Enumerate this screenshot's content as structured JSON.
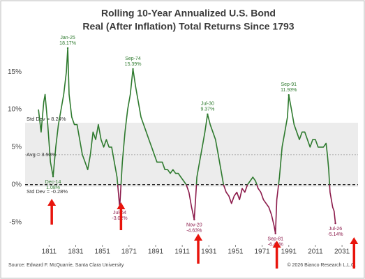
{
  "chart_data": {
    "type": "line",
    "title": "Rolling 10-Year Annualized U.S. Bond",
    "subtitle": "Real (After Inflation) Total Returns Since 1793",
    "x": [
      1803,
      1805,
      1807,
      1808,
      1810,
      1812,
      1814,
      1816,
      1818,
      1820,
      1822,
      1824,
      1825,
      1826,
      1828,
      1830,
      1832,
      1834,
      1836,
      1838,
      1840,
      1842,
      1844,
      1846,
      1848,
      1850,
      1852,
      1854,
      1856,
      1858,
      1860,
      1862,
      1864,
      1865,
      1866,
      1868,
      1870,
      1872,
      1874,
      1876,
      1878,
      1880,
      1882,
      1884,
      1886,
      1888,
      1890,
      1892,
      1894,
      1896,
      1898,
      1900,
      1902,
      1904,
      1906,
      1908,
      1910,
      1912,
      1914,
      1916,
      1918,
      1920,
      1921,
      1922,
      1924,
      1926,
      1928,
      1930,
      1932,
      1934,
      1936,
      1938,
      1940,
      1942,
      1944,
      1946,
      1948,
      1950,
      1952,
      1954,
      1956,
      1958,
      1960,
      1962,
      1964,
      1966,
      1968,
      1970,
      1972,
      1974,
      1976,
      1978,
      1980,
      1981,
      1982,
      1984,
      1986,
      1988,
      1990,
      1991,
      1993,
      1995,
      1997,
      1999,
      2001,
      2003,
      2005,
      2007,
      2009,
      2011,
      2013,
      2015,
      2017,
      2019,
      2020,
      2021,
      2022,
      2023,
      2024,
      2025,
      2026
    ],
    "values": [
      10,
      7,
      11,
      12,
      8,
      3,
      1.08,
      5,
      8,
      10,
      12,
      15,
      18.17,
      12,
      9,
      8,
      8,
      6,
      4,
      3,
      2,
      4,
      7,
      6,
      8,
      6,
      5,
      6,
      5,
      5,
      3,
      1,
      -3.02,
      0,
      3,
      7,
      10,
      12,
      15.39,
      13,
      11,
      9,
      8,
      7,
      6,
      5,
      4,
      3,
      3,
      3,
      2,
      2,
      1.5,
      2,
      1.5,
      1.5,
      1,
      0.5,
      0,
      -1,
      -3,
      -4.63,
      -2,
      1,
      3,
      5,
      7,
      9.37,
      8,
      7,
      6,
      4,
      2,
      0,
      -1,
      -1.5,
      -2.5,
      -1.5,
      -1,
      -2,
      -0.5,
      -1,
      0,
      0.5,
      1,
      0.5,
      -0.5,
      -1,
      -2,
      -2.5,
      -3,
      -4,
      -5.5,
      -6.49,
      -2,
      1,
      5,
      7,
      9,
      11.93,
      10,
      8,
      7,
      6,
      7,
      7,
      6,
      5,
      6,
      6,
      5,
      5,
      5,
      5.5,
      4,
      2,
      -1,
      -2,
      -3,
      -3.5,
      -5.14
    ],
    "color_positive": "#2e7a2e",
    "color_negative": "#8b1a4a",
    "xlim": [
      1793,
      2043
    ],
    "xticks": [
      1811,
      1831,
      1851,
      1871,
      1891,
      1911,
      1931,
      1951,
      1971,
      1991,
      2011,
      2031
    ],
    "ylim": [
      -8,
      19
    ],
    "yticks": [
      {
        "value": -5,
        "label": "-5%"
      },
      {
        "value": 0,
        "label": "0%"
      },
      {
        "value": 5,
        "label": "5%"
      },
      {
        "value": 10,
        "label": "10%"
      },
      {
        "value": 15,
        "label": "15%"
      }
    ],
    "bands": {
      "upper": 8.24,
      "upper_label": "Std Dev = 8.24%",
      "avg": 3.98,
      "avg_label": "Avg = 3.98%",
      "lower": -0.28,
      "lower_label": "Std Dev = -0.28%"
    },
    "annotations": [
      {
        "x": 1825,
        "value": 18.17,
        "date": "Jan-25",
        "value_label": "18.17%"
      },
      {
        "x": 1814,
        "value": 1.08,
        "date": "Dec-14",
        "value_label": "1.08%"
      },
      {
        "x": 1874,
        "value": 15.39,
        "date": "Sep-74",
        "value_label": "15.39%"
      },
      {
        "x": 1864,
        "value": -3.02,
        "date": "Jul-64",
        "value_label": "-3.02%"
      },
      {
        "x": 1920,
        "value": -4.63,
        "date": "Nov-20",
        "value_label": "-4.63%"
      },
      {
        "x": 1930,
        "value": 9.37,
        "date": "Jul-30",
        "value_label": "9.37%"
      },
      {
        "x": 1981,
        "value": -6.49,
        "date": "Sep-81",
        "value_label": "-6.49%"
      },
      {
        "x": 1991,
        "value": 11.93,
        "date": "Sep-91",
        "value_label": "11.93%"
      },
      {
        "x": 2026,
        "value": -5.14,
        "date": "Jul-26",
        "value_label": "-5.14%"
      }
    ],
    "arrows_x": [
      1813,
      1865,
      1923,
      1982,
      2040
    ],
    "arrow_color": "#e8140c",
    "source": "Source: Edward F. McQuarrie, Santa Clara University",
    "copyright": "© 2026 Bianco Research L.L.C."
  }
}
